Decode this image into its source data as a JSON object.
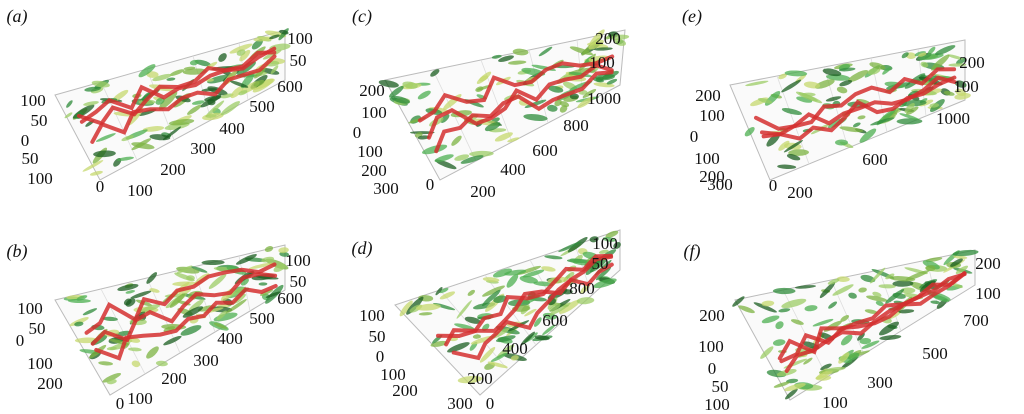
{
  "panels": [
    {
      "label": "(a)",
      "ticks": [
        "100",
        "50",
        "600",
        "500",
        "400",
        "300",
        "200",
        "100",
        "100",
        "50",
        "0",
        "50",
        "100",
        "0"
      ]
    },
    {
      "label": "(c)",
      "ticks": [
        "200",
        "100",
        "1000",
        "800",
        "600",
        "400",
        "200",
        "200",
        "100",
        "0",
        "100",
        "200",
        "300",
        "0"
      ]
    },
    {
      "label": "(e)",
      "ticks": [
        "200",
        "100",
        "1000",
        "600",
        "200",
        "200",
        "100",
        "0",
        "100",
        "200",
        "300",
        "0"
      ]
    },
    {
      "label": "(b)",
      "ticks": [
        "100",
        "50",
        "600",
        "500",
        "400",
        "300",
        "200",
        "100",
        "100",
        "50",
        "0",
        "100",
        "200",
        "0"
      ]
    },
    {
      "label": "(d)",
      "ticks": [
        "100",
        "50",
        "800",
        "600",
        "400",
        "200",
        "100",
        "50",
        "0",
        "100",
        "200",
        "300",
        "0"
      ]
    },
    {
      "label": "(f)",
      "ticks": [
        "200",
        "100",
        "700",
        "500",
        "300",
        "100",
        "200",
        "100",
        "0",
        "50",
        "100"
      ]
    }
  ]
}
